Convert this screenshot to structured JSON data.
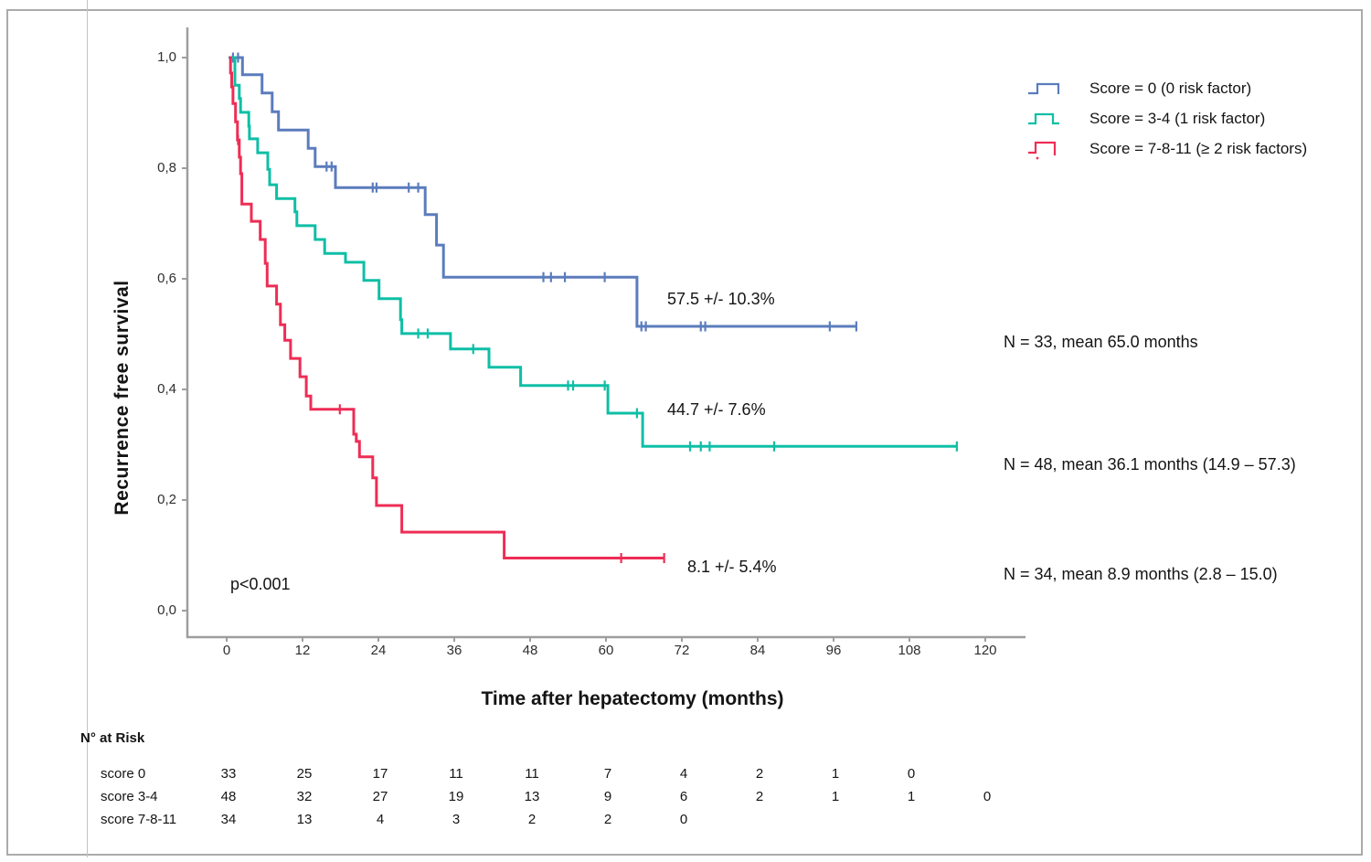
{
  "figure": {
    "y_axis_title": "Recurrence free survival",
    "x_axis_title": "Time after hepatectomy (months)",
    "p_value": "p<0.001"
  },
  "legend": [
    {
      "label": "Score = 0 (0 risk factor)"
    },
    {
      "label": "Score = 3-4 (1 risk factor)"
    },
    {
      "label": "Score = 7-8-11 (≥ 2 risk factors)"
    }
  ],
  "annotations": {
    "rates": [
      "57.5 +/- 10.3%",
      "44.7 +/- 7.6%",
      "8.1 +/- 5.4%"
    ],
    "n_labels": [
      "N = 33, mean 65.0 months",
      "N = 48, mean 36.1 months (14.9 – 57.3)",
      "N = 34, mean 8.9 months (2.8 – 15.0)"
    ]
  },
  "chart_data": {
    "type": "line",
    "subtype": "kaplan-meier-step",
    "xlabel": "Time after hepatectomy (months)",
    "ylabel": "Recurrence free survival",
    "xlim": [
      0,
      120
    ],
    "ylim": [
      0.0,
      1.0
    ],
    "x_ticks": [
      0,
      12,
      24,
      36,
      48,
      60,
      72,
      84,
      96,
      108,
      120
    ],
    "y_ticks": [
      0.0,
      0.2,
      0.4,
      0.6,
      0.8,
      1.0
    ],
    "y_tick_labels": [
      "0,0",
      "0,2",
      "0,4",
      "0,6",
      "0,8",
      "1,0"
    ],
    "grid": false,
    "legend_position": "top-right",
    "p_value_annotation": "p<0.001",
    "series": [
      {
        "name": "Score = 0 (0 risk factor)",
        "color": "#5b7cbd",
        "n": 33,
        "rate_label": "57.5 +/- 10.3%",
        "n_label": "N = 33, mean 65.0 months",
        "steps": [
          [
            0.3,
            1.0
          ],
          [
            2.5,
            0.969
          ],
          [
            5.6,
            0.936
          ],
          [
            7.2,
            0.902
          ],
          [
            8.2,
            0.869
          ],
          [
            12.9,
            0.836
          ],
          [
            14.0,
            0.803
          ],
          [
            17.2,
            0.765
          ],
          [
            31.4,
            0.716
          ],
          [
            33.2,
            0.661
          ],
          [
            34.3,
            0.603
          ],
          [
            64.9,
            0.514
          ]
        ],
        "end_time": 99.6,
        "censors": [
          [
            1.0,
            1.0
          ],
          [
            1.8,
            1.0
          ],
          [
            15.8,
            0.803
          ],
          [
            16.6,
            0.803
          ],
          [
            23.1,
            0.765
          ],
          [
            23.7,
            0.765
          ],
          [
            28.8,
            0.765
          ],
          [
            30.3,
            0.765
          ],
          [
            50.1,
            0.603
          ],
          [
            51.3,
            0.603
          ],
          [
            53.5,
            0.603
          ],
          [
            59.8,
            0.603
          ],
          [
            65.6,
            0.514
          ],
          [
            66.3,
            0.514
          ],
          [
            75.0,
            0.514
          ],
          [
            75.7,
            0.514
          ],
          [
            95.4,
            0.514
          ],
          [
            99.6,
            0.514
          ]
        ]
      },
      {
        "name": "Score = 3-4 (1 risk factor)",
        "color": "#0ebfa6",
        "n": 48,
        "rate_label": "44.7 +/- 7.6%",
        "n_label": "N = 48, mean 36.1 months (14.9 – 57.3)",
        "steps": [
          [
            0.7,
            1.0
          ],
          [
            1.3,
            0.95
          ],
          [
            2.0,
            0.926
          ],
          [
            2.2,
            0.901
          ],
          [
            3.5,
            0.876
          ],
          [
            3.6,
            0.853
          ],
          [
            4.9,
            0.828
          ],
          [
            6.5,
            0.798
          ],
          [
            6.8,
            0.77
          ],
          [
            7.9,
            0.745
          ],
          [
            10.8,
            0.721
          ],
          [
            11.1,
            0.696
          ],
          [
            14.0,
            0.671
          ],
          [
            15.5,
            0.646
          ],
          [
            18.8,
            0.63
          ],
          [
            21.7,
            0.597
          ],
          [
            24.1,
            0.564
          ],
          [
            27.5,
            0.526
          ],
          [
            27.7,
            0.501
          ],
          [
            35.4,
            0.473
          ],
          [
            41.5,
            0.44
          ],
          [
            46.5,
            0.407
          ],
          [
            60.3,
            0.357
          ],
          [
            65.8,
            0.297
          ]
        ],
        "end_time": 115.5,
        "censors": [
          [
            30.3,
            0.501
          ],
          [
            31.8,
            0.501
          ],
          [
            39.0,
            0.473
          ],
          [
            54.0,
            0.407
          ],
          [
            54.8,
            0.407
          ],
          [
            59.8,
            0.407
          ],
          [
            64.9,
            0.357
          ],
          [
            73.3,
            0.297
          ],
          [
            75.0,
            0.297
          ],
          [
            76.4,
            0.297
          ],
          [
            86.6,
            0.297
          ],
          [
            115.5,
            0.297
          ]
        ]
      },
      {
        "name": "Score = 7-8-11 (≥ 2 risk factors)",
        "color": "#ee2d55",
        "n": 34,
        "rate_label": "8.1 +/- 5.4%",
        "n_label": "N = 34, mean 8.9 months (2.8 – 15.0)",
        "steps": [
          [
            0.4,
            1.0
          ],
          [
            0.6,
            0.972
          ],
          [
            0.8,
            0.947
          ],
          [
            1.0,
            0.917
          ],
          [
            1.4,
            0.884
          ],
          [
            1.7,
            0.851
          ],
          [
            2.0,
            0.82
          ],
          [
            2.2,
            0.79
          ],
          [
            2.4,
            0.735
          ],
          [
            3.9,
            0.704
          ],
          [
            5.3,
            0.671
          ],
          [
            6.1,
            0.628
          ],
          [
            6.4,
            0.587
          ],
          [
            7.9,
            0.554
          ],
          [
            8.5,
            0.517
          ],
          [
            9.2,
            0.489
          ],
          [
            10.1,
            0.456
          ],
          [
            11.6,
            0.423
          ],
          [
            12.6,
            0.388
          ],
          [
            13.3,
            0.364
          ],
          [
            20.1,
            0.319
          ],
          [
            20.5,
            0.306
          ],
          [
            21.0,
            0.278
          ],
          [
            23.1,
            0.24
          ],
          [
            23.7,
            0.19
          ],
          [
            27.7,
            0.142
          ],
          [
            43.9,
            0.095
          ]
        ],
        "end_time": 69.2,
        "censors": [
          [
            1.8,
            0.851
          ],
          [
            17.9,
            0.364
          ],
          [
            62.4,
            0.095
          ],
          [
            69.2,
            0.095
          ]
        ]
      }
    ]
  },
  "risk_table": {
    "title": "N° at Risk",
    "time_points": [
      0,
      12,
      24,
      36,
      48,
      60,
      72,
      84,
      96,
      108,
      120
    ],
    "rows": [
      {
        "label": "score 0",
        "values": [
          "33",
          "25",
          "17",
          "11",
          "11",
          "7",
          "4",
          "2",
          "1",
          "0"
        ]
      },
      {
        "label": "score 3-4",
        "values": [
          "48",
          "32",
          "27",
          "19",
          "13",
          "9",
          "6",
          "2",
          "1",
          "1",
          "0"
        ]
      },
      {
        "label": "score 7-8-11",
        "values": [
          "34",
          "13",
          "4",
          "3",
          "2",
          "2",
          "0"
        ]
      }
    ]
  }
}
